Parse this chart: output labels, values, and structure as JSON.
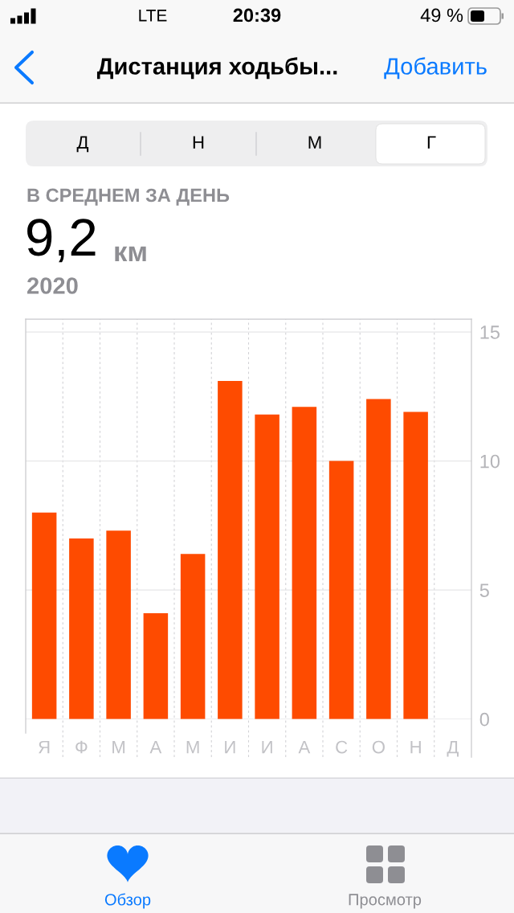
{
  "chart_data": {
    "type": "bar",
    "title": "Дистанция ходьбы...",
    "subtitle": "В СРЕДНЕМ ЗА ДЕНЬ",
    "annotations": [
      "LTE",
      "20:39",
      "49 %",
      "Добавить",
      "Д",
      "Н",
      "М",
      "Г",
      "9,2",
      "км",
      "2020",
      "Обзор",
      "Просмотр"
    ],
    "categories": [
      "Я",
      "Ф",
      "М",
      "А",
      "М",
      "И",
      "И",
      "А",
      "С",
      "О",
      "Н",
      "Д"
    ],
    "values": [
      8.0,
      7.0,
      7.3,
      4.1,
      6.4,
      13.1,
      11.8,
      12.1,
      10.0,
      12.4,
      11.9,
      null
    ],
    "color": "#fe4b00",
    "ylim": [
      0,
      15.5
    ],
    "yticks": [
      0,
      5,
      10,
      15
    ],
    "grid": true
  }
}
